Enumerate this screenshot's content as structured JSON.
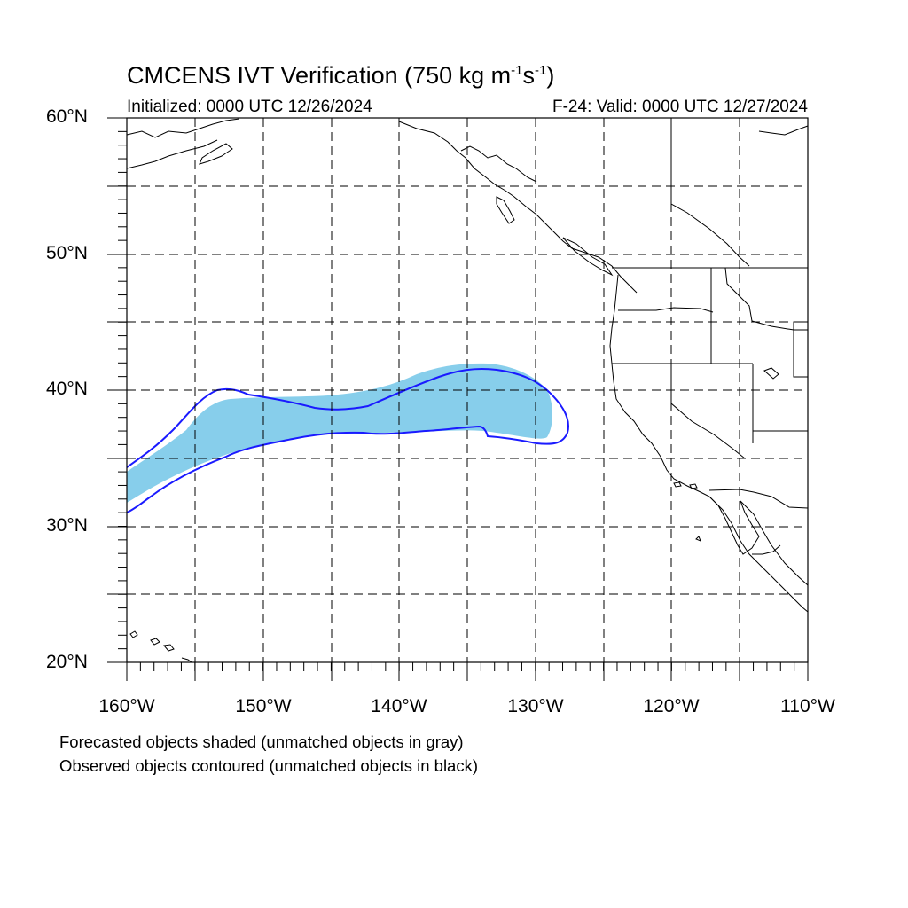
{
  "title": {
    "main": "CMCENS IVT Verification (750 kg m",
    "sup1": "-1",
    "mid": "s",
    "sup2": "-1",
    "end": ")"
  },
  "subtitle_left": "Initialized: 0000 UTC 12/26/2024",
  "subtitle_right": "F-24: Valid: 0000 UTC 12/27/2024",
  "lat_labels": [
    "60°N",
    "50°N",
    "40°N",
    "30°N",
    "20°N"
  ],
  "lon_labels": [
    "160°W",
    "150°W",
    "140°W",
    "130°W",
    "120°W",
    "110°W"
  ],
  "notes": [
    "Forecasted objects shaded (unmatched objects in gray)",
    "Observed objects contoured (unmatched objects in black)"
  ],
  "colors": {
    "forecast_fill": "#87ceeb",
    "observed_contour": "#1a1aff",
    "grid": "#000000",
    "coast": "#000000"
  },
  "map": {
    "extent": {
      "lon_min": -160,
      "lon_max": -110,
      "lat_min": 20,
      "lat_max": 60
    },
    "grid_spacing_deg": 5,
    "grid_style": "dashed"
  }
}
